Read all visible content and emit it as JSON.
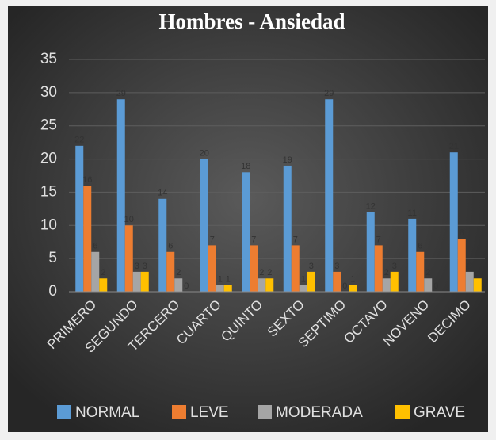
{
  "chart_data": {
    "type": "bar",
    "title": "Hombres - Ansiedad",
    "categories": [
      "PRIMERO",
      "SEGUNDO",
      "TERCERO",
      "CUARTO",
      "QUINTO",
      "SEXTO",
      "SEPTIMO",
      "OCTAVO",
      "NOVENO",
      "DECIMO"
    ],
    "series": [
      {
        "name": "NORMAL",
        "color": "#5b9bd5",
        "values": [
          22,
          29,
          14,
          20,
          18,
          19,
          29,
          12,
          11,
          21
        ]
      },
      {
        "name": "LEVE",
        "color": "#ed7d31",
        "values": [
          16,
          10,
          6,
          7,
          7,
          7,
          3,
          7,
          6,
          8
        ]
      },
      {
        "name": "MODERADA",
        "color": "#a5a5a5",
        "values": [
          6,
          3,
          2,
          1,
          2,
          1,
          0,
          2,
          2,
          3
        ]
      },
      {
        "name": "GRAVE",
        "color": "#ffc000",
        "values": [
          2,
          3,
          0,
          1,
          2,
          3,
          1,
          3,
          0,
          2
        ]
      }
    ],
    "ylim": [
      0,
      35
    ],
    "yticks": [
      0,
      5,
      10,
      15,
      20,
      25,
      30,
      35
    ],
    "grid": true,
    "legend": "bottom"
  }
}
